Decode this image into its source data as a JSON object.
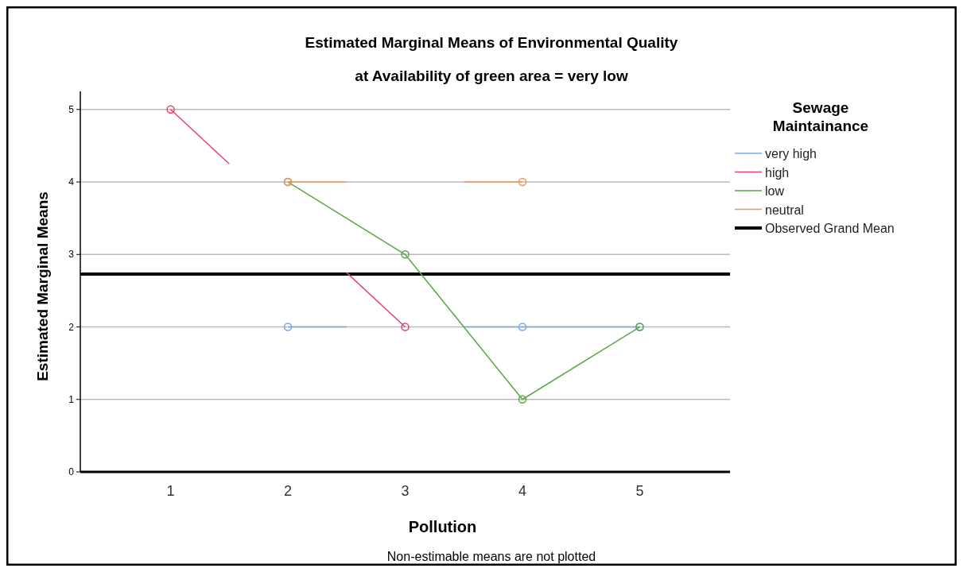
{
  "chart_data": {
    "type": "line",
    "title": "Estimated Marginal Means of Environmental Quality",
    "subtitle": "at Availability of green area = very low",
    "xlabel": "Pollution",
    "ylabel": "Estimated Marginal Means",
    "legend_title": "Sewage Maintainance",
    "annotations": [
      "Non-estimable means are not plotted"
    ],
    "x": [
      1,
      2,
      3,
      4,
      5
    ],
    "xlim": [
      0.23,
      5.77
    ],
    "xticks": [
      1,
      2,
      3,
      4,
      5
    ],
    "ylim": [
      0,
      5.25
    ],
    "yticks": [
      0,
      1,
      2,
      3,
      4,
      5
    ],
    "grid": "y",
    "legend": "right",
    "marker": "circle",
    "line_style": "solid",
    "series": [
      {
        "name": "very high",
        "color": "#6fa8f0",
        "x": [
          2,
          2.5,
          3,
          3.5,
          4,
          5
        ],
        "values": [
          2,
          2,
          null,
          2,
          2,
          2
        ],
        "marker": "none"
      },
      {
        "name": "high",
        "color": "#e5436b",
        "x": [
          1,
          1.5,
          2,
          2.5,
          3
        ],
        "values": [
          5,
          4.25,
          null,
          2.75,
          2
        ],
        "marker": "none"
      },
      {
        "name": "low",
        "color": "#5aa64a",
        "x": [
          2,
          3,
          4,
          5
        ],
        "values": [
          4,
          3,
          1,
          2
        ],
        "marker": "none"
      },
      {
        "name": "neutral",
        "color": "#f5925e",
        "x": [
          2,
          2.5,
          3,
          3.5,
          4
        ],
        "values": [
          4,
          4,
          null,
          4,
          4
        ],
        "marker": "none"
      },
      {
        "type": "scatter",
        "color": "#6fa8f0",
        "values": [
          null,
          2,
          null,
          2,
          2
        ]
      },
      {
        "type": "scatter",
        "color": "#e5436b",
        "values": [
          5,
          null,
          2,
          null,
          null
        ]
      },
      {
        "type": "scatter",
        "color": "#5aa64a",
        "values": [
          null,
          4,
          3,
          1,
          2
        ]
      },
      {
        "type": "scatter",
        "color": "#f5925e",
        "values": [
          null,
          4,
          null,
          4,
          null
        ]
      }
    ],
    "ref_lines": [
      {
        "axis": "y",
        "value": 2.73,
        "label": "Observed Grand Mean",
        "color": "#000000"
      }
    ]
  }
}
